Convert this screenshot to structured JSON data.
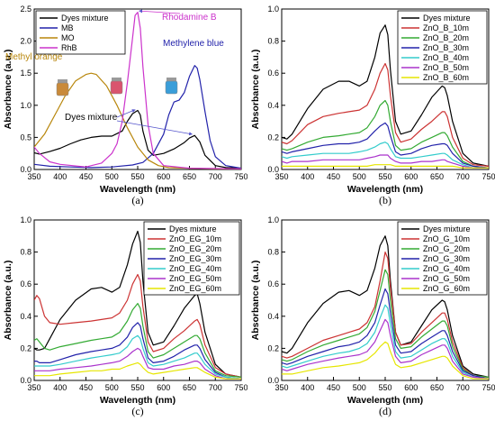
{
  "chart_data": [
    {
      "type": "line",
      "panel": "(a)",
      "xlabel": "Wavelength (nm)",
      "ylabel": "Absorbance (a.u.)",
      "xlim": [
        350,
        750
      ],
      "ylim": [
        0,
        2.5
      ],
      "xticks": [
        350,
        400,
        450,
        500,
        550,
        600,
        650,
        700,
        750
      ],
      "yticks": [
        0.0,
        0.5,
        1.0,
        1.5,
        2.0,
        2.5
      ],
      "legend_position": "top-left",
      "annotations": [
        {
          "text": "Rhodamine B",
          "color": "#cc33cc"
        },
        {
          "text": "Methylene blue",
          "color": "#2222aa"
        },
        {
          "text": "Methyl orange",
          "color": "#b8860b"
        },
        {
          "text": "Dyes mixture",
          "color": "#000000"
        }
      ],
      "series": [
        {
          "name": "Dyes mixture",
          "color": "#000000",
          "x": [
            350,
            360,
            380,
            400,
            420,
            440,
            460,
            480,
            500,
            520,
            530,
            540,
            550,
            555,
            560,
            570,
            580,
            600,
            620,
            640,
            650,
            660,
            670,
            680,
            700,
            720,
            750
          ],
          "y": [
            0.26,
            0.24,
            0.28,
            0.33,
            0.4,
            0.46,
            0.5,
            0.52,
            0.52,
            0.6,
            0.75,
            0.87,
            0.92,
            0.85,
            0.6,
            0.3,
            0.22,
            0.25,
            0.32,
            0.42,
            0.49,
            0.53,
            0.43,
            0.22,
            0.06,
            0.03,
            0.02
          ]
        },
        {
          "name": "MB",
          "color": "#2222aa",
          "x": [
            350,
            380,
            420,
            460,
            500,
            540,
            560,
            580,
            600,
            610,
            620,
            630,
            640,
            650,
            660,
            665,
            670,
            680,
            690,
            700,
            720,
            750
          ],
          "y": [
            0.08,
            0.05,
            0.04,
            0.03,
            0.04,
            0.07,
            0.11,
            0.25,
            0.55,
            0.85,
            1.05,
            1.08,
            1.2,
            1.45,
            1.62,
            1.58,
            1.4,
            0.9,
            0.45,
            0.2,
            0.06,
            0.02
          ]
        },
        {
          "name": "MO",
          "color": "#b8860b",
          "x": [
            350,
            370,
            390,
            410,
            430,
            450,
            460,
            470,
            490,
            510,
            530,
            550,
            570,
            590,
            610,
            650,
            700,
            750
          ],
          "y": [
            0.35,
            0.55,
            0.85,
            1.15,
            1.38,
            1.48,
            1.5,
            1.48,
            1.3,
            1.0,
            0.65,
            0.35,
            0.15,
            0.06,
            0.03,
            0.02,
            0.01,
            0.01
          ]
        },
        {
          "name": "RhB",
          "color": "#cc33cc",
          "x": [
            350,
            360,
            380,
            400,
            450,
            480,
            500,
            510,
            520,
            530,
            540,
            545,
            550,
            555,
            560,
            570,
            580,
            600,
            650,
            750
          ],
          "y": [
            0.35,
            0.25,
            0.12,
            0.08,
            0.04,
            0.1,
            0.25,
            0.4,
            0.75,
            1.35,
            2.05,
            2.4,
            2.45,
            2.2,
            1.6,
            0.7,
            0.25,
            0.06,
            0.02,
            0.01
          ]
        }
      ]
    },
    {
      "type": "line",
      "panel": "(b)",
      "xlabel": "Wavelength (nm)",
      "ylabel": "Absorbance (a.u.)",
      "xlim": [
        350,
        750
      ],
      "ylim": [
        0,
        1.0
      ],
      "xticks": [
        350,
        400,
        450,
        500,
        550,
        600,
        650,
        700,
        750
      ],
      "yticks": [
        0.0,
        0.2,
        0.4,
        0.6,
        0.8,
        1.0
      ],
      "legend_position": "top-right",
      "x": [
        350,
        360,
        370,
        400,
        430,
        460,
        480,
        500,
        515,
        530,
        540,
        550,
        555,
        560,
        570,
        580,
        600,
        620,
        640,
        660,
        665,
        670,
        680,
        700,
        720,
        750
      ],
      "series": [
        {
          "name": "Dyes mixture",
          "color": "#000000",
          "y": [
            0.2,
            0.19,
            0.22,
            0.38,
            0.5,
            0.55,
            0.55,
            0.52,
            0.55,
            0.7,
            0.85,
            0.9,
            0.84,
            0.62,
            0.3,
            0.22,
            0.24,
            0.34,
            0.45,
            0.52,
            0.51,
            0.46,
            0.3,
            0.1,
            0.04,
            0.02
          ]
        },
        {
          "name": "ZnO_B_10m",
          "color": "#cc3333",
          "y": [
            0.17,
            0.16,
            0.18,
            0.28,
            0.33,
            0.35,
            0.36,
            0.37,
            0.4,
            0.5,
            0.6,
            0.66,
            0.62,
            0.46,
            0.23,
            0.17,
            0.19,
            0.25,
            0.3,
            0.36,
            0.36,
            0.33,
            0.2,
            0.07,
            0.03,
            0.02
          ]
        },
        {
          "name": "ZnO_B_20m",
          "color": "#33aa33",
          "y": [
            0.13,
            0.12,
            0.13,
            0.17,
            0.2,
            0.21,
            0.22,
            0.23,
            0.26,
            0.33,
            0.4,
            0.43,
            0.4,
            0.3,
            0.15,
            0.12,
            0.13,
            0.17,
            0.2,
            0.23,
            0.23,
            0.21,
            0.14,
            0.05,
            0.02,
            0.01
          ]
        },
        {
          "name": "ZnO_B_30m",
          "color": "#2222aa",
          "y": [
            0.11,
            0.1,
            0.11,
            0.13,
            0.15,
            0.16,
            0.16,
            0.17,
            0.19,
            0.24,
            0.27,
            0.29,
            0.27,
            0.21,
            0.11,
            0.09,
            0.1,
            0.13,
            0.15,
            0.16,
            0.16,
            0.15,
            0.1,
            0.04,
            0.02,
            0.01
          ]
        },
        {
          "name": "ZnO_B_40m",
          "color": "#33cccc",
          "y": [
            0.08,
            0.07,
            0.08,
            0.09,
            0.1,
            0.1,
            0.1,
            0.11,
            0.12,
            0.14,
            0.16,
            0.17,
            0.16,
            0.13,
            0.08,
            0.07,
            0.07,
            0.08,
            0.09,
            0.1,
            0.1,
            0.09,
            0.06,
            0.03,
            0.01,
            0.01
          ]
        },
        {
          "name": "ZnO_B_50m",
          "color": "#aa33cc",
          "y": [
            0.05,
            0.04,
            0.05,
            0.05,
            0.06,
            0.06,
            0.06,
            0.06,
            0.07,
            0.08,
            0.09,
            0.09,
            0.09,
            0.07,
            0.05,
            0.04,
            0.04,
            0.05,
            0.05,
            0.06,
            0.06,
            0.05,
            0.04,
            0.02,
            0.01,
            0.01
          ]
        },
        {
          "name": "ZnO_B_60m",
          "color": "#e6e600",
          "y": [
            0.02,
            0.02,
            0.02,
            0.02,
            0.02,
            0.02,
            0.02,
            0.02,
            0.02,
            0.03,
            0.03,
            0.03,
            0.03,
            0.03,
            0.02,
            0.02,
            0.02,
            0.02,
            0.02,
            0.02,
            0.02,
            0.02,
            0.02,
            0.01,
            0.01,
            0.01
          ]
        }
      ]
    },
    {
      "type": "line",
      "panel": "(c)",
      "xlabel": "Wavelength (nm)",
      "ylabel": "Absorbance (a.u.)",
      "xlim": [
        350,
        750
      ],
      "ylim": [
        0,
        1.0
      ],
      "xticks": [
        350,
        400,
        450,
        500,
        550,
        600,
        650,
        700,
        750
      ],
      "yticks": [
        0.0,
        0.2,
        0.4,
        0.6,
        0.8,
        1.0
      ],
      "legend_position": "top-right",
      "x": [
        350,
        355,
        360,
        370,
        380,
        400,
        430,
        460,
        480,
        500,
        515,
        530,
        540,
        550,
        555,
        560,
        570,
        580,
        600,
        620,
        640,
        660,
        665,
        670,
        680,
        700,
        720,
        750
      ],
      "series": [
        {
          "name": "Dyes mixture",
          "color": "#000000",
          "y": [
            0.2,
            0.19,
            0.19,
            0.2,
            0.26,
            0.38,
            0.5,
            0.57,
            0.58,
            0.55,
            0.58,
            0.72,
            0.85,
            0.93,
            0.86,
            0.62,
            0.3,
            0.22,
            0.24,
            0.34,
            0.45,
            0.53,
            0.54,
            0.48,
            0.3,
            0.1,
            0.04,
            0.02
          ]
        },
        {
          "name": "ZnO_EG_10m",
          "color": "#cc3333",
          "y": [
            0.5,
            0.53,
            0.51,
            0.4,
            0.36,
            0.35,
            0.36,
            0.37,
            0.38,
            0.39,
            0.42,
            0.5,
            0.6,
            0.66,
            0.62,
            0.46,
            0.24,
            0.18,
            0.2,
            0.26,
            0.31,
            0.37,
            0.38,
            0.35,
            0.22,
            0.08,
            0.04,
            0.02
          ]
        },
        {
          "name": "ZnO_EG_20m",
          "color": "#33aa33",
          "y": [
            0.25,
            0.26,
            0.24,
            0.2,
            0.19,
            0.21,
            0.23,
            0.25,
            0.26,
            0.27,
            0.3,
            0.37,
            0.44,
            0.48,
            0.45,
            0.34,
            0.18,
            0.14,
            0.16,
            0.2,
            0.24,
            0.28,
            0.28,
            0.26,
            0.17,
            0.06,
            0.03,
            0.02
          ]
        },
        {
          "name": "ZnO_EG_30m",
          "color": "#2222aa",
          "y": [
            0.12,
            0.12,
            0.11,
            0.11,
            0.11,
            0.13,
            0.16,
            0.18,
            0.19,
            0.2,
            0.22,
            0.27,
            0.33,
            0.36,
            0.34,
            0.26,
            0.14,
            0.11,
            0.12,
            0.15,
            0.19,
            0.22,
            0.22,
            0.2,
            0.13,
            0.05,
            0.02,
            0.01
          ]
        },
        {
          "name": "ZnO_EG_40m",
          "color": "#33cccc",
          "y": [
            0.09,
            0.09,
            0.09,
            0.09,
            0.09,
            0.1,
            0.12,
            0.14,
            0.15,
            0.16,
            0.17,
            0.21,
            0.26,
            0.28,
            0.26,
            0.2,
            0.11,
            0.09,
            0.1,
            0.12,
            0.14,
            0.17,
            0.17,
            0.15,
            0.1,
            0.04,
            0.02,
            0.01
          ]
        },
        {
          "name": "ZnO_EG_50m",
          "color": "#aa33cc",
          "y": [
            0.06,
            0.06,
            0.06,
            0.06,
            0.06,
            0.07,
            0.08,
            0.09,
            0.1,
            0.11,
            0.12,
            0.15,
            0.18,
            0.2,
            0.19,
            0.15,
            0.08,
            0.07,
            0.07,
            0.09,
            0.1,
            0.12,
            0.12,
            0.11,
            0.07,
            0.03,
            0.01,
            0.01
          ]
        },
        {
          "name": "ZnO_EG_60m",
          "color": "#e6e600",
          "y": [
            0.03,
            0.03,
            0.03,
            0.03,
            0.03,
            0.04,
            0.05,
            0.06,
            0.06,
            0.07,
            0.07,
            0.09,
            0.1,
            0.11,
            0.1,
            0.08,
            0.05,
            0.04,
            0.05,
            0.06,
            0.07,
            0.08,
            0.08,
            0.07,
            0.05,
            0.02,
            0.01,
            0.01
          ]
        }
      ]
    },
    {
      "type": "line",
      "panel": "(d)",
      "xlabel": "Wavelength (nm)",
      "ylabel": "Absorbance (a.u.)",
      "xlim": [
        350,
        750
      ],
      "ylim": [
        0,
        1.0
      ],
      "xticks": [
        350,
        400,
        450,
        500,
        550,
        600,
        650,
        700,
        750
      ],
      "yticks": [
        0.0,
        0.2,
        0.4,
        0.6,
        0.8,
        1.0
      ],
      "legend_position": "top-right",
      "x": [
        350,
        360,
        370,
        400,
        430,
        460,
        480,
        500,
        515,
        530,
        540,
        550,
        555,
        560,
        570,
        580,
        600,
        620,
        640,
        660,
        665,
        670,
        680,
        700,
        720,
        750
      ],
      "series": [
        {
          "name": "Dyes mixture",
          "color": "#000000",
          "y": [
            0.18,
            0.17,
            0.2,
            0.36,
            0.48,
            0.55,
            0.56,
            0.53,
            0.56,
            0.7,
            0.84,
            0.9,
            0.84,
            0.62,
            0.3,
            0.22,
            0.24,
            0.34,
            0.44,
            0.5,
            0.49,
            0.44,
            0.28,
            0.09,
            0.04,
            0.02
          ]
        },
        {
          "name": "ZnO_G_10m",
          "color": "#cc3333",
          "y": [
            0.15,
            0.14,
            0.15,
            0.2,
            0.25,
            0.28,
            0.3,
            0.32,
            0.36,
            0.46,
            0.62,
            0.8,
            0.76,
            0.58,
            0.3,
            0.22,
            0.23,
            0.3,
            0.36,
            0.42,
            0.42,
            0.38,
            0.24,
            0.08,
            0.03,
            0.02
          ]
        },
        {
          "name": "ZnO_G_20m",
          "color": "#33aa33",
          "y": [
            0.13,
            0.12,
            0.13,
            0.18,
            0.22,
            0.25,
            0.27,
            0.29,
            0.33,
            0.43,
            0.56,
            0.69,
            0.66,
            0.5,
            0.26,
            0.2,
            0.21,
            0.27,
            0.32,
            0.37,
            0.37,
            0.34,
            0.21,
            0.07,
            0.03,
            0.02
          ]
        },
        {
          "name": "ZnO_G_30m",
          "color": "#2222aa",
          "y": [
            0.11,
            0.1,
            0.11,
            0.15,
            0.18,
            0.21,
            0.22,
            0.24,
            0.28,
            0.36,
            0.47,
            0.57,
            0.54,
            0.42,
            0.22,
            0.17,
            0.18,
            0.23,
            0.27,
            0.31,
            0.31,
            0.28,
            0.18,
            0.06,
            0.03,
            0.01
          ]
        },
        {
          "name": "ZnO_G_40m",
          "color": "#33cccc",
          "y": [
            0.09,
            0.08,
            0.09,
            0.12,
            0.15,
            0.17,
            0.18,
            0.2,
            0.23,
            0.3,
            0.39,
            0.47,
            0.45,
            0.35,
            0.18,
            0.14,
            0.15,
            0.19,
            0.23,
            0.26,
            0.26,
            0.24,
            0.15,
            0.05,
            0.02,
            0.01
          ]
        },
        {
          "name": "ZnO_G_50m",
          "color": "#aa33cc",
          "y": [
            0.07,
            0.06,
            0.07,
            0.1,
            0.12,
            0.14,
            0.15,
            0.16,
            0.18,
            0.24,
            0.31,
            0.38,
            0.36,
            0.28,
            0.15,
            0.11,
            0.12,
            0.16,
            0.19,
            0.22,
            0.22,
            0.2,
            0.12,
            0.04,
            0.02,
            0.01
          ]
        },
        {
          "name": "ZnO_G_60m",
          "color": "#e6e600",
          "y": [
            0.04,
            0.04,
            0.04,
            0.06,
            0.08,
            0.09,
            0.1,
            0.11,
            0.13,
            0.17,
            0.21,
            0.24,
            0.23,
            0.18,
            0.1,
            0.08,
            0.09,
            0.11,
            0.13,
            0.15,
            0.15,
            0.14,
            0.09,
            0.03,
            0.01,
            0.01
          ]
        }
      ]
    }
  ]
}
